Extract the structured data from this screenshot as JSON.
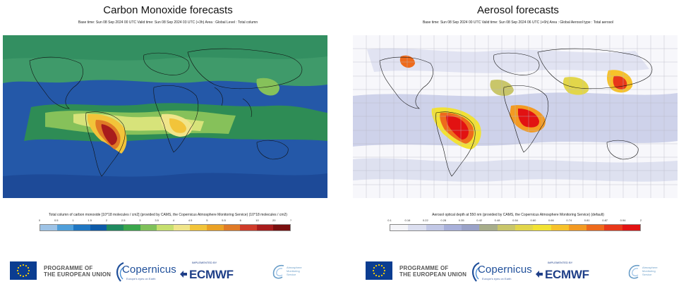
{
  "panels": [
    {
      "title": "Carbon Monoxide forecasts",
      "subtitle": "Base time: Sun 08 Sep 2024 00 UTC Valid time: Sun 08 Sep 2024 03 UTC (+3h) Area : Global Level : Total column",
      "legend_caption": "Total column of carbon monoxide [10^18 molecules / cm2] (provided by CAMS, the Copernicus Atmosphere Monitoring Service) (10^18 molecules / cm2)",
      "legend_ticks": [
        "0",
        "0.5",
        "1",
        "1.5",
        "2",
        "2.5",
        "3",
        "3.5",
        "4",
        "4.5",
        "5",
        "5.5",
        "6",
        "10",
        "20",
        "?"
      ],
      "legend_colors": [
        "#9ec3e6",
        "#4f9fda",
        "#1f76c2",
        "#0d5aa8",
        "#1f8a5f",
        "#3aa64b",
        "#7fc15a",
        "#c6df6e",
        "#f0e58a",
        "#f2c43a",
        "#eaa125",
        "#e07a26",
        "#cf3b2a",
        "#a81c1c",
        "#7a0f0f"
      ]
    },
    {
      "title": "Aerosol forecasts",
      "subtitle": "Base time: Sun 08 Sep 2024 00 UTC Valid time: Sun 08 Sep 2024 06 UTC (+6h) Area : Global Aerosol type : Total aerosol",
      "legend_caption": "Aerosol optical depth at 550 nm (provided by CAMS, the Copernicus Atmosphere Monitoring Service) (default)",
      "legend_ticks": [
        "0.1",
        "0.16",
        "0.22",
        "0.28",
        "0.35",
        "0.42",
        "0.48",
        "0.54",
        "0.60",
        "0.66",
        "0.74",
        "0.81",
        "0.87",
        "0.94",
        "2"
      ],
      "legend_colors": [
        "#f4f4f8",
        "#dcdff0",
        "#c2c8e6",
        "#a8b0da",
        "#9aa2c8",
        "#a7ad8a",
        "#c9c66a",
        "#e2d64a",
        "#f2e233",
        "#f7c22a",
        "#f39a22",
        "#ee6a1c",
        "#e8381a",
        "#e21212"
      ]
    }
  ],
  "logos": {
    "eu_line1": "PROGRAMME OF",
    "eu_line2": "THE EUROPEAN UNION",
    "copernicus": "Copernicus",
    "copernicus_tagline": "Europe's eyes on Earth",
    "implemented_by": "IMPLEMENTED BY",
    "ecmwf": "ECMWF",
    "atmosphere_line1": "Atmosphere",
    "atmosphere_line2": "Monitoring",
    "atmosphere_line3": "Service"
  }
}
